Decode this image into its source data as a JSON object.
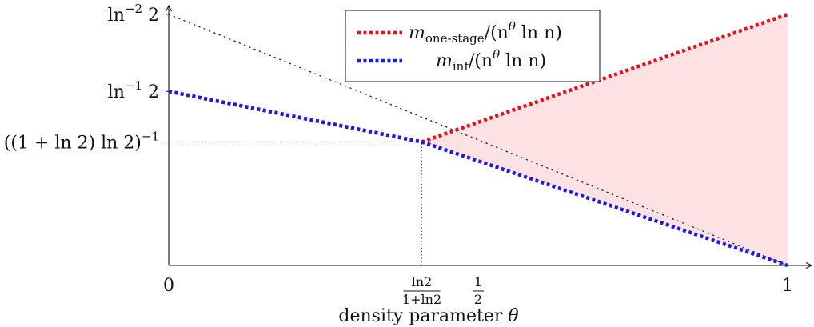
{
  "chart_data": {
    "type": "line",
    "xlabel_prefix": "density parameter ",
    "xlabel_symbol": "θ",
    "xlim": [
      0,
      1
    ],
    "ylim": [
      0,
      2.12
    ],
    "x_ticks": [
      {
        "value": 0,
        "kind": "plain",
        "label": "0"
      },
      {
        "value": 0.409,
        "kind": "frac",
        "num": "ln2",
        "den": "1+ln2"
      },
      {
        "value": 0.5,
        "kind": "frac",
        "num": "1",
        "den": "2"
      },
      {
        "value": 1,
        "kind": "plain",
        "label": "1"
      }
    ],
    "y_ticks": [
      {
        "value": 2.081,
        "base": "ln",
        "sup": "−2",
        "tail": " 2"
      },
      {
        "value": 1.443,
        "base": "ln",
        "sup": "−1",
        "tail": " 2"
      },
      {
        "value": 1.024,
        "base": "((1 + ln 2) ln 2)",
        "sup": "−1",
        "tail": ""
      }
    ],
    "series": [
      {
        "key": "one_stage",
        "color": "#e8101a",
        "points": [
          [
            0,
            1.443
          ],
          [
            0.409,
            1.024
          ],
          [
            1,
            2.081
          ]
        ]
      },
      {
        "key": "inf",
        "color": "#1a1ae6",
        "points": [
          [
            0,
            1.443
          ],
          [
            0.409,
            1.024
          ],
          [
            1,
            0
          ]
        ]
      }
    ],
    "reference_line": {
      "points": [
        [
          0,
          2.081
        ],
        [
          1,
          0
        ]
      ],
      "style": "dotted",
      "color": "#222222"
    },
    "guide_lines": [
      {
        "from": [
          0,
          1.024
        ],
        "to": [
          0.409,
          1.024
        ]
      },
      {
        "from": [
          0.409,
          0
        ],
        "to": [
          0.409,
          1.024
        ]
      }
    ],
    "shaded_region": {
      "color": "#fde2e4",
      "points": [
        [
          0.409,
          1.024
        ],
        [
          1,
          2.081
        ],
        [
          1,
          0
        ]
      ]
    },
    "legend": {
      "placement": "top-center",
      "entries": [
        {
          "series": "one_stage",
          "sub": "one-stage"
        },
        {
          "series": "inf",
          "sub": "inf"
        }
      ],
      "term": "/(n",
      "term_sup": "θ",
      "term_tail": " ln n)"
    }
  }
}
